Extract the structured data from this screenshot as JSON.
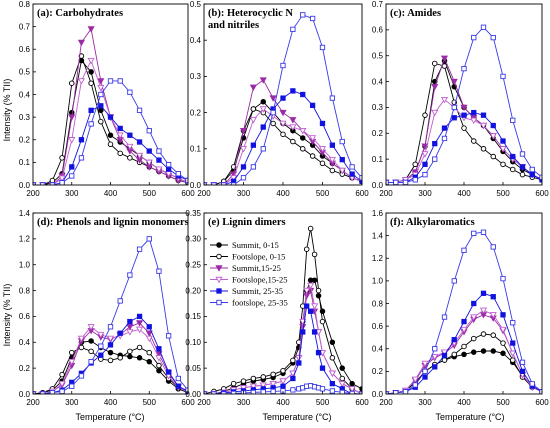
{
  "figure": {
    "ylabel": "Intensity (% TII)",
    "xlabel": "Temperature (°C)"
  },
  "legend": {
    "panel": "(e)",
    "entries": [
      "Summit, 0-15",
      "Footslope, 0-15",
      "Summit,15-25",
      "Footslope,15-25",
      "Summit, 25-35",
      "footslope, 25-35"
    ]
  },
  "series_style": [
    {
      "name": "Summit, 0-15",
      "color": "#000000",
      "marker": "circle",
      "filled": true
    },
    {
      "name": "Footslope, 0-15",
      "color": "#000000",
      "marker": "circle",
      "filled": false
    },
    {
      "name": "Summit,15-25",
      "color": "#9a2aa6",
      "marker": "triangle-down",
      "filled": true
    },
    {
      "name": "Footslope,15-25",
      "color": "#c05fcf",
      "marker": "triangle-down",
      "filled": false
    },
    {
      "name": "Summit, 25-35",
      "color": "#1212e0",
      "marker": "square",
      "filled": true
    },
    {
      "name": "footslope, 25-35",
      "color": "#3a3aea",
      "marker": "square",
      "filled": false
    }
  ],
  "chart_data": [
    {
      "type": "line",
      "title": "(a): Carbohydrates",
      "xlim": [
        200,
        600
      ],
      "ylim": [
        0,
        0.8
      ],
      "xticks": [
        200,
        300,
        400,
        500,
        600
      ],
      "yticks": [
        0.0,
        0.1,
        0.2,
        0.3,
        0.4,
        0.5,
        0.6,
        0.7,
        0.8
      ],
      "x": [
        200,
        225,
        250,
        275,
        300,
        325,
        350,
        375,
        400,
        425,
        450,
        475,
        500,
        525,
        550,
        575,
        600
      ],
      "series": [
        {
          "name": "Summit, 0-15",
          "values": [
            0.0,
            0.0,
            0.01,
            0.05,
            0.32,
            0.55,
            0.5,
            0.33,
            0.22,
            0.19,
            0.16,
            0.13,
            0.1,
            0.07,
            0.05,
            0.03,
            0.01
          ]
        },
        {
          "name": "Footslope, 0-15",
          "values": [
            0.0,
            0.0,
            0.02,
            0.12,
            0.45,
            0.57,
            0.45,
            0.28,
            0.18,
            0.14,
            0.12,
            0.1,
            0.08,
            0.06,
            0.04,
            0.02,
            0.01
          ]
        },
        {
          "name": "Summit,15-25",
          "values": [
            0.0,
            0.0,
            0.0,
            0.04,
            0.3,
            0.63,
            0.69,
            0.46,
            0.3,
            0.2,
            0.15,
            0.11,
            0.08,
            0.06,
            0.04,
            0.02,
            0.01
          ]
        },
        {
          "name": "Footslope,15-25",
          "values": [
            0.0,
            0.0,
            0.0,
            0.03,
            0.2,
            0.46,
            0.55,
            0.43,
            0.3,
            0.22,
            0.17,
            0.13,
            0.1,
            0.07,
            0.05,
            0.03,
            0.01
          ]
        },
        {
          "name": "Summit, 25-35",
          "values": [
            0.0,
            0.0,
            0.0,
            0.01,
            0.08,
            0.2,
            0.33,
            0.35,
            0.3,
            0.25,
            0.22,
            0.19,
            0.15,
            0.11,
            0.07,
            0.04,
            0.02
          ]
        },
        {
          "name": "footslope, 25-35",
          "values": [
            0.0,
            0.0,
            0.0,
            0.01,
            0.04,
            0.12,
            0.27,
            0.4,
            0.46,
            0.46,
            0.41,
            0.33,
            0.24,
            0.15,
            0.09,
            0.05,
            0.02
          ]
        }
      ]
    },
    {
      "type": "line",
      "title": "(b): Heterocyclic N and nitriles",
      "xlim": [
        200,
        600
      ],
      "ylim": [
        0,
        0.5
      ],
      "xticks": [
        200,
        300,
        400,
        500,
        600
      ],
      "yticks": [
        0.0,
        0.1,
        0.2,
        0.3,
        0.4,
        0.5
      ],
      "x": [
        200,
        225,
        250,
        275,
        300,
        325,
        350,
        375,
        400,
        425,
        450,
        475,
        500,
        525,
        550,
        575,
        600
      ],
      "series": [
        {
          "name": "Summit, 0-15",
          "values": [
            0.0,
            0.0,
            0.01,
            0.04,
            0.13,
            0.21,
            0.23,
            0.2,
            0.17,
            0.15,
            0.13,
            0.11,
            0.08,
            0.06,
            0.04,
            0.02,
            0.01
          ]
        },
        {
          "name": "Footslope, 0-15",
          "values": [
            0.0,
            0.0,
            0.01,
            0.05,
            0.15,
            0.21,
            0.2,
            0.17,
            0.14,
            0.12,
            0.1,
            0.08,
            0.06,
            0.04,
            0.03,
            0.02,
            0.01
          ]
        },
        {
          "name": "Summit,15-25",
          "values": [
            0.0,
            0.0,
            0.0,
            0.03,
            0.15,
            0.27,
            0.29,
            0.24,
            0.2,
            0.18,
            0.15,
            0.12,
            0.09,
            0.06,
            0.04,
            0.02,
            0.01
          ]
        },
        {
          "name": "Footslope,15-25",
          "values": [
            0.0,
            0.0,
            0.0,
            0.02,
            0.1,
            0.18,
            0.21,
            0.19,
            0.17,
            0.16,
            0.15,
            0.13,
            0.1,
            0.07,
            0.04,
            0.02,
            0.01
          ]
        },
        {
          "name": "Summit, 25-35",
          "values": [
            0.0,
            0.0,
            0.0,
            0.01,
            0.05,
            0.11,
            0.16,
            0.21,
            0.24,
            0.26,
            0.25,
            0.22,
            0.17,
            0.11,
            0.07,
            0.03,
            0.01
          ]
        },
        {
          "name": "footslope, 25-35",
          "values": [
            0.0,
            0.0,
            0.0,
            0.0,
            0.02,
            0.05,
            0.1,
            0.2,
            0.33,
            0.43,
            0.47,
            0.46,
            0.38,
            0.24,
            0.12,
            0.05,
            0.02
          ]
        }
      ]
    },
    {
      "type": "line",
      "title": "(c): Amides",
      "xlim": [
        200,
        600
      ],
      "ylim": [
        0,
        0.7
      ],
      "xticks": [
        200,
        300,
        400,
        500,
        600
      ],
      "yticks": [
        0.0,
        0.1,
        0.2,
        0.3,
        0.4,
        0.5,
        0.6,
        0.7
      ],
      "x": [
        200,
        225,
        250,
        275,
        300,
        325,
        350,
        375,
        400,
        425,
        450,
        475,
        500,
        525,
        550,
        575,
        600
      ],
      "series": [
        {
          "name": "Summit, 0-15",
          "values": [
            0.01,
            0.01,
            0.02,
            0.05,
            0.15,
            0.4,
            0.48,
            0.38,
            0.3,
            0.26,
            0.23,
            0.18,
            0.13,
            0.09,
            0.06,
            0.04,
            0.02
          ]
        },
        {
          "name": "Footslope, 0-15",
          "values": [
            0.01,
            0.01,
            0.02,
            0.08,
            0.27,
            0.47,
            0.46,
            0.32,
            0.22,
            0.17,
            0.14,
            0.11,
            0.08,
            0.06,
            0.04,
            0.03,
            0.02
          ]
        },
        {
          "name": "Summit,15-25",
          "values": [
            0.01,
            0.01,
            0.02,
            0.05,
            0.15,
            0.38,
            0.49,
            0.4,
            0.3,
            0.26,
            0.23,
            0.19,
            0.14,
            0.1,
            0.07,
            0.04,
            0.02
          ]
        },
        {
          "name": "Footslope,15-25",
          "values": [
            0.01,
            0.01,
            0.02,
            0.04,
            0.12,
            0.28,
            0.33,
            0.3,
            0.26,
            0.25,
            0.23,
            0.19,
            0.14,
            0.1,
            0.07,
            0.04,
            0.02
          ]
        },
        {
          "name": "Summit, 25-35",
          "values": [
            0.01,
            0.01,
            0.01,
            0.03,
            0.08,
            0.16,
            0.22,
            0.26,
            0.27,
            0.28,
            0.27,
            0.23,
            0.17,
            0.11,
            0.07,
            0.04,
            0.02
          ]
        },
        {
          "name": "footslope, 25-35",
          "values": [
            0.01,
            0.01,
            0.01,
            0.02,
            0.04,
            0.1,
            0.18,
            0.3,
            0.45,
            0.57,
            0.61,
            0.57,
            0.42,
            0.25,
            0.12,
            0.06,
            0.03
          ]
        }
      ]
    },
    {
      "type": "line",
      "title": "(d): Phenols and lignin monomers",
      "xlim": [
        200,
        600
      ],
      "ylim": [
        0,
        1.4
      ],
      "xticks": [
        200,
        300,
        400,
        500,
        600
      ],
      "yticks": [
        0.0,
        0.2,
        0.4,
        0.6,
        0.8,
        1.0,
        1.2,
        1.4
      ],
      "x": [
        200,
        225,
        250,
        275,
        300,
        325,
        350,
        375,
        400,
        425,
        450,
        475,
        500,
        525,
        550,
        575,
        600
      ],
      "series": [
        {
          "name": "Summit, 0-15",
          "values": [
            0.0,
            0.01,
            0.03,
            0.1,
            0.28,
            0.4,
            0.41,
            0.36,
            0.32,
            0.3,
            0.29,
            0.28,
            0.25,
            0.18,
            0.1,
            0.04,
            0.01
          ]
        },
        {
          "name": "Footslope, 0-15",
          "values": [
            0.0,
            0.01,
            0.04,
            0.15,
            0.32,
            0.36,
            0.33,
            0.27,
            0.26,
            0.28,
            0.33,
            0.36,
            0.32,
            0.22,
            0.12,
            0.05,
            0.02
          ]
        },
        {
          "name": "Summit,15-25",
          "values": [
            0.0,
            0.0,
            0.02,
            0.07,
            0.22,
            0.41,
            0.49,
            0.44,
            0.42,
            0.46,
            0.52,
            0.55,
            0.47,
            0.31,
            0.16,
            0.06,
            0.02
          ]
        },
        {
          "name": "Footslope,15-25",
          "values": [
            0.0,
            0.0,
            0.02,
            0.08,
            0.25,
            0.43,
            0.52,
            0.46,
            0.43,
            0.45,
            0.48,
            0.5,
            0.43,
            0.28,
            0.14,
            0.05,
            0.02
          ]
        },
        {
          "name": "Summit, 25-35",
          "values": [
            0.0,
            0.0,
            0.01,
            0.03,
            0.09,
            0.16,
            0.24,
            0.3,
            0.38,
            0.47,
            0.56,
            0.6,
            0.52,
            0.35,
            0.17,
            0.06,
            0.02
          ]
        },
        {
          "name": "footslope, 25-35",
          "values": [
            0.0,
            0.0,
            0.01,
            0.02,
            0.06,
            0.14,
            0.25,
            0.37,
            0.52,
            0.72,
            0.92,
            1.12,
            1.2,
            0.95,
            0.45,
            0.12,
            0.03
          ]
        }
      ]
    },
    {
      "type": "line",
      "title": "(e) Lignin dimers",
      "xlim": [
        200,
        600
      ],
      "ylim": [
        0,
        0.35
      ],
      "xticks": [
        200,
        300,
        400,
        500,
        600
      ],
      "yticks": [
        0.0,
        0.05,
        0.1,
        0.15,
        0.2,
        0.25,
        0.3,
        0.35
      ],
      "x": [
        200,
        225,
        250,
        275,
        300,
        325,
        350,
        375,
        400,
        425,
        440,
        450,
        460,
        470,
        480,
        490,
        500,
        525,
        550,
        575,
        600
      ],
      "series": [
        {
          "name": "Summit, 0-15",
          "values": [
            0.0,
            0.0,
            0.005,
            0.012,
            0.02,
            0.025,
            0.028,
            0.032,
            0.04,
            0.06,
            0.09,
            0.14,
            0.2,
            0.22,
            0.22,
            0.19,
            0.16,
            0.1,
            0.05,
            0.02,
            0.01
          ]
        },
        {
          "name": "Footslope, 0-15",
          "values": [
            0.0,
            0.005,
            0.01,
            0.02,
            0.025,
            0.03,
            0.033,
            0.038,
            0.045,
            0.065,
            0.1,
            0.17,
            0.28,
            0.32,
            0.27,
            0.2,
            0.14,
            0.07,
            0.03,
            0.01,
            0.0
          ]
        },
        {
          "name": "Summit,15-25",
          "values": [
            0.0,
            0.0,
            0.003,
            0.008,
            0.012,
            0.015,
            0.017,
            0.02,
            0.025,
            0.04,
            0.07,
            0.13,
            0.19,
            0.2,
            0.16,
            0.12,
            0.08,
            0.04,
            0.02,
            0.01,
            0.0
          ]
        },
        {
          "name": "Footslope,15-25",
          "values": [
            0.0,
            0.0,
            0.003,
            0.008,
            0.012,
            0.015,
            0.017,
            0.02,
            0.025,
            0.04,
            0.07,
            0.14,
            0.2,
            0.21,
            0.17,
            0.12,
            0.08,
            0.04,
            0.02,
            0.01,
            0.0
          ]
        },
        {
          "name": "Summit, 25-35",
          "values": [
            0.0,
            0.0,
            0.002,
            0.004,
            0.006,
            0.008,
            0.01,
            0.012,
            0.015,
            0.03,
            0.06,
            0.12,
            0.17,
            0.16,
            0.12,
            0.08,
            0.05,
            0.02,
            0.01,
            0.0,
            0.0
          ]
        },
        {
          "name": "footslope, 25-35",
          "values": [
            0.0,
            0.0,
            0.0,
            0.001,
            0.002,
            0.003,
            0.004,
            0.005,
            0.006,
            0.008,
            0.01,
            0.012,
            0.015,
            0.016,
            0.014,
            0.012,
            0.01,
            0.006,
            0.003,
            0.001,
            0.0
          ]
        }
      ]
    },
    {
      "type": "line",
      "title": "(f): Alkylaromatics",
      "xlim": [
        200,
        600
      ],
      "ylim": [
        0,
        1.6
      ],
      "xticks": [
        200,
        300,
        400,
        500,
        600
      ],
      "yticks": [
        0.0,
        0.2,
        0.4,
        0.6,
        0.8,
        1.0,
        1.2,
        1.4,
        1.6
      ],
      "x": [
        200,
        225,
        250,
        275,
        300,
        325,
        350,
        375,
        400,
        425,
        450,
        475,
        500,
        525,
        550,
        575,
        600
      ],
      "series": [
        {
          "name": "Summit, 0-15",
          "values": [
            0.0,
            0.01,
            0.03,
            0.1,
            0.2,
            0.26,
            0.3,
            0.33,
            0.35,
            0.37,
            0.38,
            0.38,
            0.36,
            0.28,
            0.16,
            0.07,
            0.02
          ]
        },
        {
          "name": "Footslope, 0-15",
          "values": [
            0.0,
            0.01,
            0.03,
            0.1,
            0.2,
            0.26,
            0.3,
            0.35,
            0.42,
            0.49,
            0.53,
            0.52,
            0.45,
            0.3,
            0.15,
            0.06,
            0.02
          ]
        },
        {
          "name": "Summit,15-25",
          "values": [
            0.0,
            0.01,
            0.03,
            0.12,
            0.25,
            0.32,
            0.36,
            0.43,
            0.55,
            0.66,
            0.7,
            0.67,
            0.56,
            0.36,
            0.17,
            0.06,
            0.02
          ]
        },
        {
          "name": "Footslope,15-25",
          "values": [
            0.0,
            0.01,
            0.03,
            0.13,
            0.27,
            0.33,
            0.37,
            0.45,
            0.57,
            0.68,
            0.74,
            0.7,
            0.57,
            0.36,
            0.17,
            0.06,
            0.02
          ]
        },
        {
          "name": "Summit, 25-35",
          "values": [
            0.0,
            0.01,
            0.02,
            0.06,
            0.15,
            0.24,
            0.34,
            0.48,
            0.64,
            0.8,
            0.89,
            0.86,
            0.7,
            0.45,
            0.2,
            0.07,
            0.02
          ]
        },
        {
          "name": "footslope, 25-35",
          "values": [
            0.0,
            0.01,
            0.02,
            0.08,
            0.2,
            0.4,
            0.68,
            1.0,
            1.27,
            1.42,
            1.43,
            1.3,
            1.02,
            0.63,
            0.28,
            0.09,
            0.02
          ]
        }
      ]
    }
  ]
}
